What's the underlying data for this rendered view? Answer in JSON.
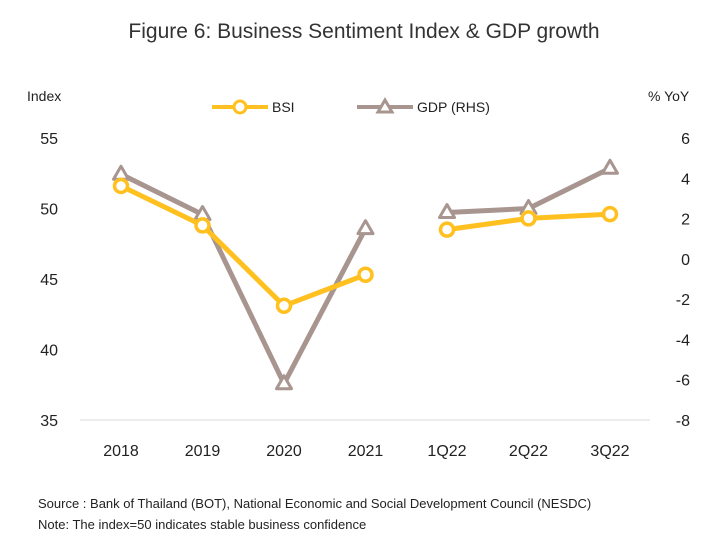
{
  "chart_data": {
    "type": "line",
    "title": "Figure 6: Business Sentiment  Index & GDP growth",
    "categories": [
      "2018",
      "2019",
      "2020",
      "2021",
      "1Q22",
      "2Q22",
      "3Q22"
    ],
    "left_axis": {
      "label": "Index",
      "ticks": [
        "55",
        "50",
        "45",
        "40",
        "35"
      ],
      "range": [
        35,
        55
      ]
    },
    "right_axis": {
      "label": "% YoY",
      "ticks": [
        "6",
        "4",
        "2",
        "0",
        "-2",
        "-4",
        "-6",
        "-8"
      ],
      "range": [
        -8,
        6
      ]
    },
    "series": [
      {
        "name": "BSI",
        "axis": "left",
        "color": "#FFC020",
        "marker": "circle",
        "values": [
          51.6,
          48.8,
          43.1,
          45.3,
          48.5,
          49.3,
          49.6
        ]
      },
      {
        "name": "GDP (RHS)",
        "axis": "right",
        "color": "#A89590",
        "marker": "triangle",
        "values": [
          4.2,
          2.2,
          -6.2,
          1.5,
          2.3,
          2.5,
          4.5
        ]
      }
    ],
    "gap_after_index": 3,
    "legend_position": "top-center",
    "grid": false
  },
  "footnotes": {
    "source": "Source : Bank of Thailand (BOT), National Economic and Social Development Council (NESDC)",
    "note": "Note: The index=50 indicates stable business confidence"
  }
}
